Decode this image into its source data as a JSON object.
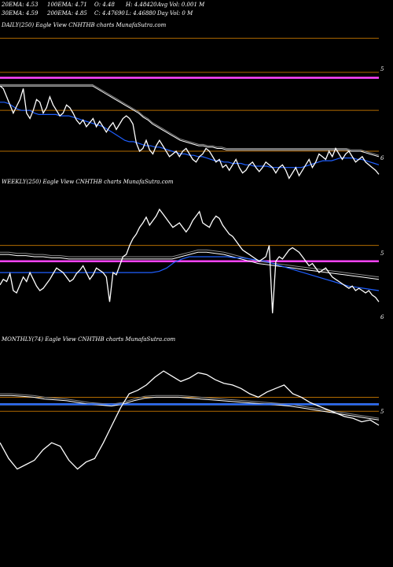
{
  "header": {
    "row1": [
      {
        "key": "ema20",
        "text": "20EMA: 4.53"
      },
      {
        "key": "ema100",
        "text": "100EMA: 4.71"
      },
      {
        "key": "open",
        "text": "O: 4.48"
      },
      {
        "key": "high",
        "text": "H: 4.48420"
      },
      {
        "key": "avgvol",
        "text": "Avg Vol: 0.001 M"
      }
    ],
    "row2": [
      {
        "key": "ema30",
        "text": "30EMA: 4.59"
      },
      {
        "key": "ema200",
        "text": "200EMA: 4.85"
      },
      {
        "key": "close",
        "text": "C: 4.47690"
      },
      {
        "key": "low",
        "text": "L: 4.46880"
      },
      {
        "key": "dayvol",
        "text": "Day Vol: 0  M"
      }
    ]
  },
  "colors": {
    "background": "#000000",
    "price": "#ffffff",
    "ema_short": "#1f5fff",
    "ema_long": "#ffffff",
    "ema_longest": "#8a8a8a",
    "resistance": "#b36b00",
    "magenta_band": "#ff44ff",
    "blue_band": "#4f8fff"
  },
  "chart_data": [
    {
      "type": "line",
      "title": "DAILY(250) Eagle   View  CNHTHB charts MunafaSutra.com",
      "right_ticks": [
        "5",
        "6"
      ],
      "price": [
        5.2,
        5.18,
        5.12,
        5.06,
        5.0,
        5.05,
        5.1,
        5.18,
        5.0,
        4.96,
        5.02,
        5.1,
        5.08,
        5.0,
        5.04,
        5.12,
        5.06,
        5.02,
        4.98,
        5.0,
        5.06,
        5.04,
        5.0,
        4.95,
        4.92,
        4.95,
        4.9,
        4.93,
        4.96,
        4.9,
        4.94,
        4.9,
        4.86,
        4.9,
        4.93,
        4.88,
        4.92,
        4.96,
        4.98,
        4.96,
        4.92,
        4.78,
        4.72,
        4.74,
        4.8,
        4.73,
        4.7,
        4.76,
        4.8,
        4.76,
        4.72,
        4.68,
        4.7,
        4.72,
        4.68,
        4.72,
        4.74,
        4.7,
        4.66,
        4.64,
        4.68,
        4.7,
        4.74,
        4.72,
        4.68,
        4.64,
        4.66,
        4.6,
        4.62,
        4.58,
        4.62,
        4.66,
        4.6,
        4.56,
        4.58,
        4.62,
        4.64,
        4.6,
        4.57,
        4.6,
        4.64,
        4.62,
        4.6,
        4.56,
        4.6,
        4.62,
        4.58,
        4.52,
        4.56,
        4.6,
        4.54,
        4.58,
        4.62,
        4.66,
        4.6,
        4.64,
        4.7,
        4.68,
        4.66,
        4.72,
        4.68,
        4.74,
        4.7,
        4.66,
        4.7,
        4.72,
        4.68,
        4.64,
        4.66,
        4.68,
        4.64,
        4.62,
        4.6,
        4.58,
        4.55
      ],
      "ema_short": [
        5.08,
        5.08,
        5.07,
        5.05,
        5.03,
        5.02,
        5.02,
        5.02,
        5.0,
        4.99,
        4.99,
        4.99,
        4.99,
        4.99,
        4.98,
        4.98,
        4.98,
        4.97,
        4.96,
        4.95,
        4.94,
        4.93,
        4.92,
        4.91,
        4.9,
        4.88,
        4.86,
        4.84,
        4.82,
        4.8,
        4.79,
        4.79,
        4.78,
        4.77,
        4.76,
        4.76,
        4.75,
        4.75,
        4.74,
        4.73,
        4.72,
        4.71,
        4.7,
        4.7,
        4.69,
        4.69,
        4.68,
        4.68,
        4.67,
        4.66,
        4.65,
        4.65,
        4.64,
        4.64,
        4.63,
        4.63,
        4.63,
        4.62,
        4.62,
        4.61,
        4.61,
        4.61,
        4.61,
        4.6,
        4.6,
        4.6,
        4.6,
        4.6,
        4.6,
        4.6,
        4.6,
        4.61,
        4.62,
        4.63,
        4.64,
        4.65,
        4.65,
        4.65,
        4.66,
        4.67,
        4.67,
        4.67,
        4.67,
        4.66,
        4.66,
        4.65,
        4.64,
        4.63,
        4.62
      ],
      "ema_long": [
        5.2,
        5.2,
        5.2,
        5.2,
        5.2,
        5.2,
        5.2,
        5.2,
        5.2,
        5.2,
        5.2,
        5.2,
        5.2,
        5.2,
        5.2,
        5.2,
        5.2,
        5.2,
        5.2,
        5.2,
        5.2,
        5.18,
        5.16,
        5.14,
        5.12,
        5.1,
        5.08,
        5.06,
        5.04,
        5.02,
        5.0,
        4.97,
        4.95,
        4.92,
        4.9,
        4.88,
        4.86,
        4.84,
        4.82,
        4.8,
        4.79,
        4.78,
        4.77,
        4.76,
        4.76,
        4.75,
        4.75,
        4.74,
        4.74,
        4.73,
        4.73,
        4.73,
        4.73,
        4.73,
        4.73,
        4.73,
        4.73,
        4.73,
        4.73,
        4.73,
        4.73,
        4.73,
        4.73,
        4.73,
        4.73,
        4.73,
        4.73,
        4.73,
        4.73,
        4.73,
        4.73,
        4.73,
        4.73,
        4.73,
        4.73,
        4.73,
        4.72,
        4.72,
        4.72,
        4.71,
        4.7,
        4.69,
        4.68
      ],
      "ema_longest": [
        5.21,
        5.21,
        5.21,
        5.21,
        5.21,
        5.21,
        5.21,
        5.21,
        5.21,
        5.21,
        5.21,
        5.21,
        5.21,
        5.21,
        5.21,
        5.21,
        5.21,
        5.21,
        5.21,
        5.21,
        5.21,
        5.19,
        5.17,
        5.15,
        5.13,
        5.11,
        5.09,
        5.07,
        5.05,
        5.03,
        5.01,
        4.98,
        4.96,
        4.93,
        4.91,
        4.89,
        4.87,
        4.85,
        4.83,
        4.81,
        4.8,
        4.79,
        4.78,
        4.77,
        4.77,
        4.76,
        4.76,
        4.75,
        4.75,
        4.74,
        4.74,
        4.74,
        4.74,
        4.74,
        4.74,
        4.74,
        4.74,
        4.74,
        4.74,
        4.74,
        4.74,
        4.74,
        4.74,
        4.74,
        4.74,
        4.74,
        4.74,
        4.74,
        4.74,
        4.74,
        4.74,
        4.74,
        4.74,
        4.74,
        4.74,
        4.74,
        4.73,
        4.73,
        4.73,
        4.72,
        4.71,
        4.7,
        4.69
      ],
      "resistance": [
        {
          "y": 5.55,
          "x_from": 0.0,
          "x_to": 1.0
        },
        {
          "y": 5.3,
          "x_from": 0.0,
          "x_to": 1.0
        },
        {
          "y": 5.02,
          "x_from": 0.0,
          "x_to": 1.0
        },
        {
          "y": 4.72,
          "x_from": 0.0,
          "x_to": 1.0
        }
      ],
      "magenta_level": 5.26,
      "ylim": [
        4.5,
        5.6
      ]
    },
    {
      "type": "line",
      "title": "WEEKLY(250) Eagle   View  CNHTHB charts MunafaSutra.com",
      "right_ticks": [
        "5",
        "6"
      ],
      "price": [
        4.35,
        4.4,
        4.38,
        4.45,
        4.3,
        4.28,
        4.35,
        4.42,
        4.38,
        4.46,
        4.4,
        4.34,
        4.3,
        4.32,
        4.36,
        4.4,
        4.45,
        4.5,
        4.48,
        4.46,
        4.42,
        4.38,
        4.4,
        4.45,
        4.48,
        4.52,
        4.46,
        4.4,
        4.44,
        4.5,
        4.48,
        4.46,
        4.42,
        4.2,
        4.46,
        4.44,
        4.52,
        4.6,
        4.62,
        4.7,
        4.76,
        4.8,
        4.86,
        4.9,
        4.95,
        4.88,
        4.92,
        4.96,
        5.02,
        4.98,
        4.94,
        4.9,
        4.86,
        4.88,
        4.9,
        4.86,
        4.82,
        4.86,
        4.92,
        4.96,
        5.0,
        4.9,
        4.88,
        4.86,
        4.92,
        4.96,
        4.94,
        4.88,
        4.84,
        4.8,
        4.78,
        4.74,
        4.7,
        4.66,
        4.64,
        4.62,
        4.6,
        4.58,
        4.56,
        4.58,
        4.6,
        4.7,
        4.1,
        4.56,
        4.6,
        4.58,
        4.62,
        4.66,
        4.68,
        4.66,
        4.64,
        4.6,
        4.56,
        4.52,
        4.54,
        4.5,
        4.46,
        4.48,
        4.5,
        4.46,
        4.42,
        4.4,
        4.38,
        4.36,
        4.34,
        4.32,
        4.34,
        4.3,
        4.32,
        4.3,
        4.28,
        4.3,
        4.26,
        4.24,
        4.2
      ],
      "ema_short": [
        4.46,
        4.46,
        4.46,
        4.46,
        4.46,
        4.46,
        4.46,
        4.46,
        4.46,
        4.46,
        4.46,
        4.46,
        4.46,
        4.46,
        4.46,
        4.46,
        4.46,
        4.46,
        4.46,
        4.46,
        4.46,
        4.47,
        4.5,
        4.55,
        4.58,
        4.6,
        4.6,
        4.6,
        4.6,
        4.6,
        4.6,
        4.59,
        4.59,
        4.58,
        4.57,
        4.56,
        4.54,
        4.52,
        4.5,
        4.48,
        4.46,
        4.44,
        4.42,
        4.4,
        4.38,
        4.36,
        4.34,
        4.33,
        4.32,
        4.31,
        4.3
      ],
      "ema_long": [
        4.62,
        4.62,
        4.61,
        4.61,
        4.6,
        4.6,
        4.59,
        4.59,
        4.58,
        4.58,
        4.58,
        4.58,
        4.58,
        4.58,
        4.58,
        4.58,
        4.58,
        4.58,
        4.58,
        4.58,
        4.58,
        4.6,
        4.62,
        4.64,
        4.64,
        4.63,
        4.62,
        4.6,
        4.58,
        4.56,
        4.54,
        4.53,
        4.52,
        4.51,
        4.5,
        4.49,
        4.48,
        4.47,
        4.46,
        4.45,
        4.44,
        4.43,
        4.42,
        4.41,
        4.4
      ],
      "ema_longest": [
        4.64,
        4.64,
        4.63,
        4.63,
        4.62,
        4.62,
        4.61,
        4.61,
        4.6,
        4.6,
        4.6,
        4.6,
        4.6,
        4.6,
        4.6,
        4.6,
        4.6,
        4.6,
        4.6,
        4.6,
        4.6,
        4.62,
        4.64,
        4.66,
        4.66,
        4.65,
        4.64,
        4.62,
        4.6,
        4.58,
        4.56,
        4.55,
        4.54,
        4.53,
        4.52,
        4.51,
        4.5,
        4.49,
        4.48,
        4.47,
        4.46,
        4.45,
        4.44,
        4.43,
        4.42
      ],
      "resistance": [
        {
          "y": 4.7,
          "x_from": 0.0,
          "x_to": 1.0
        }
      ],
      "magenta_level": 4.56,
      "ylim": [
        4.0,
        5.2
      ]
    },
    {
      "type": "line",
      "title": "MONTHLY(74) Eagle   View  CNHTHB charts MunafaSutra.com",
      "right_ticks": [
        "5"
      ],
      "price": [
        4.3,
        4.12,
        4.0,
        4.05,
        4.1,
        4.22,
        4.3,
        4.26,
        4.1,
        4.0,
        4.08,
        4.12,
        4.3,
        4.5,
        4.7,
        4.86,
        4.9,
        4.96,
        5.05,
        5.12,
        5.06,
        5.0,
        5.04,
        5.1,
        5.08,
        5.02,
        4.98,
        4.96,
        4.92,
        4.86,
        4.82,
        4.88,
        4.92,
        4.96,
        4.86,
        4.82,
        4.76,
        4.72,
        4.68,
        4.64,
        4.6,
        4.58,
        4.54,
        4.56,
        4.5
      ],
      "ema_short": [
        4.74,
        4.74,
        4.74,
        4.74,
        4.74,
        4.74,
        4.74,
        4.74,
        4.74,
        4.74,
        4.74,
        4.74,
        4.74,
        4.74,
        4.74,
        4.74,
        4.74,
        4.74,
        4.74,
        4.74,
        4.74,
        4.74,
        4.74,
        4.74,
        4.74,
        4.74,
        4.74,
        4.74,
        4.74
      ],
      "ema_long": [
        4.84,
        4.84,
        4.83,
        4.82,
        4.8,
        4.79,
        4.78,
        4.76,
        4.74,
        4.73,
        4.72,
        4.74,
        4.78,
        4.81,
        4.82,
        4.82,
        4.82,
        4.81,
        4.8,
        4.79,
        4.78,
        4.77,
        4.76,
        4.75,
        4.74,
        4.73,
        4.72,
        4.7,
        4.68,
        4.66,
        4.64,
        4.62,
        4.6,
        4.58,
        4.56
      ],
      "ema_longest": [
        4.86,
        4.86,
        4.85,
        4.84,
        4.82,
        4.81,
        4.8,
        4.78,
        4.76,
        4.75,
        4.74,
        4.76,
        4.8,
        4.83,
        4.84,
        4.84,
        4.84,
        4.83,
        4.82,
        4.81,
        4.8,
        4.79,
        4.78,
        4.77,
        4.76,
        4.75,
        4.74,
        4.72,
        4.7,
        4.68,
        4.66,
        4.64,
        4.62,
        4.6,
        4.58
      ],
      "resistance": [
        {
          "y": 4.82,
          "x_from": 0.0,
          "x_to": 1.0
        },
        {
          "y": 4.66,
          "x_from": 0.0,
          "x_to": 1.0
        }
      ],
      "ylim": [
        3.6,
        5.4
      ]
    }
  ]
}
